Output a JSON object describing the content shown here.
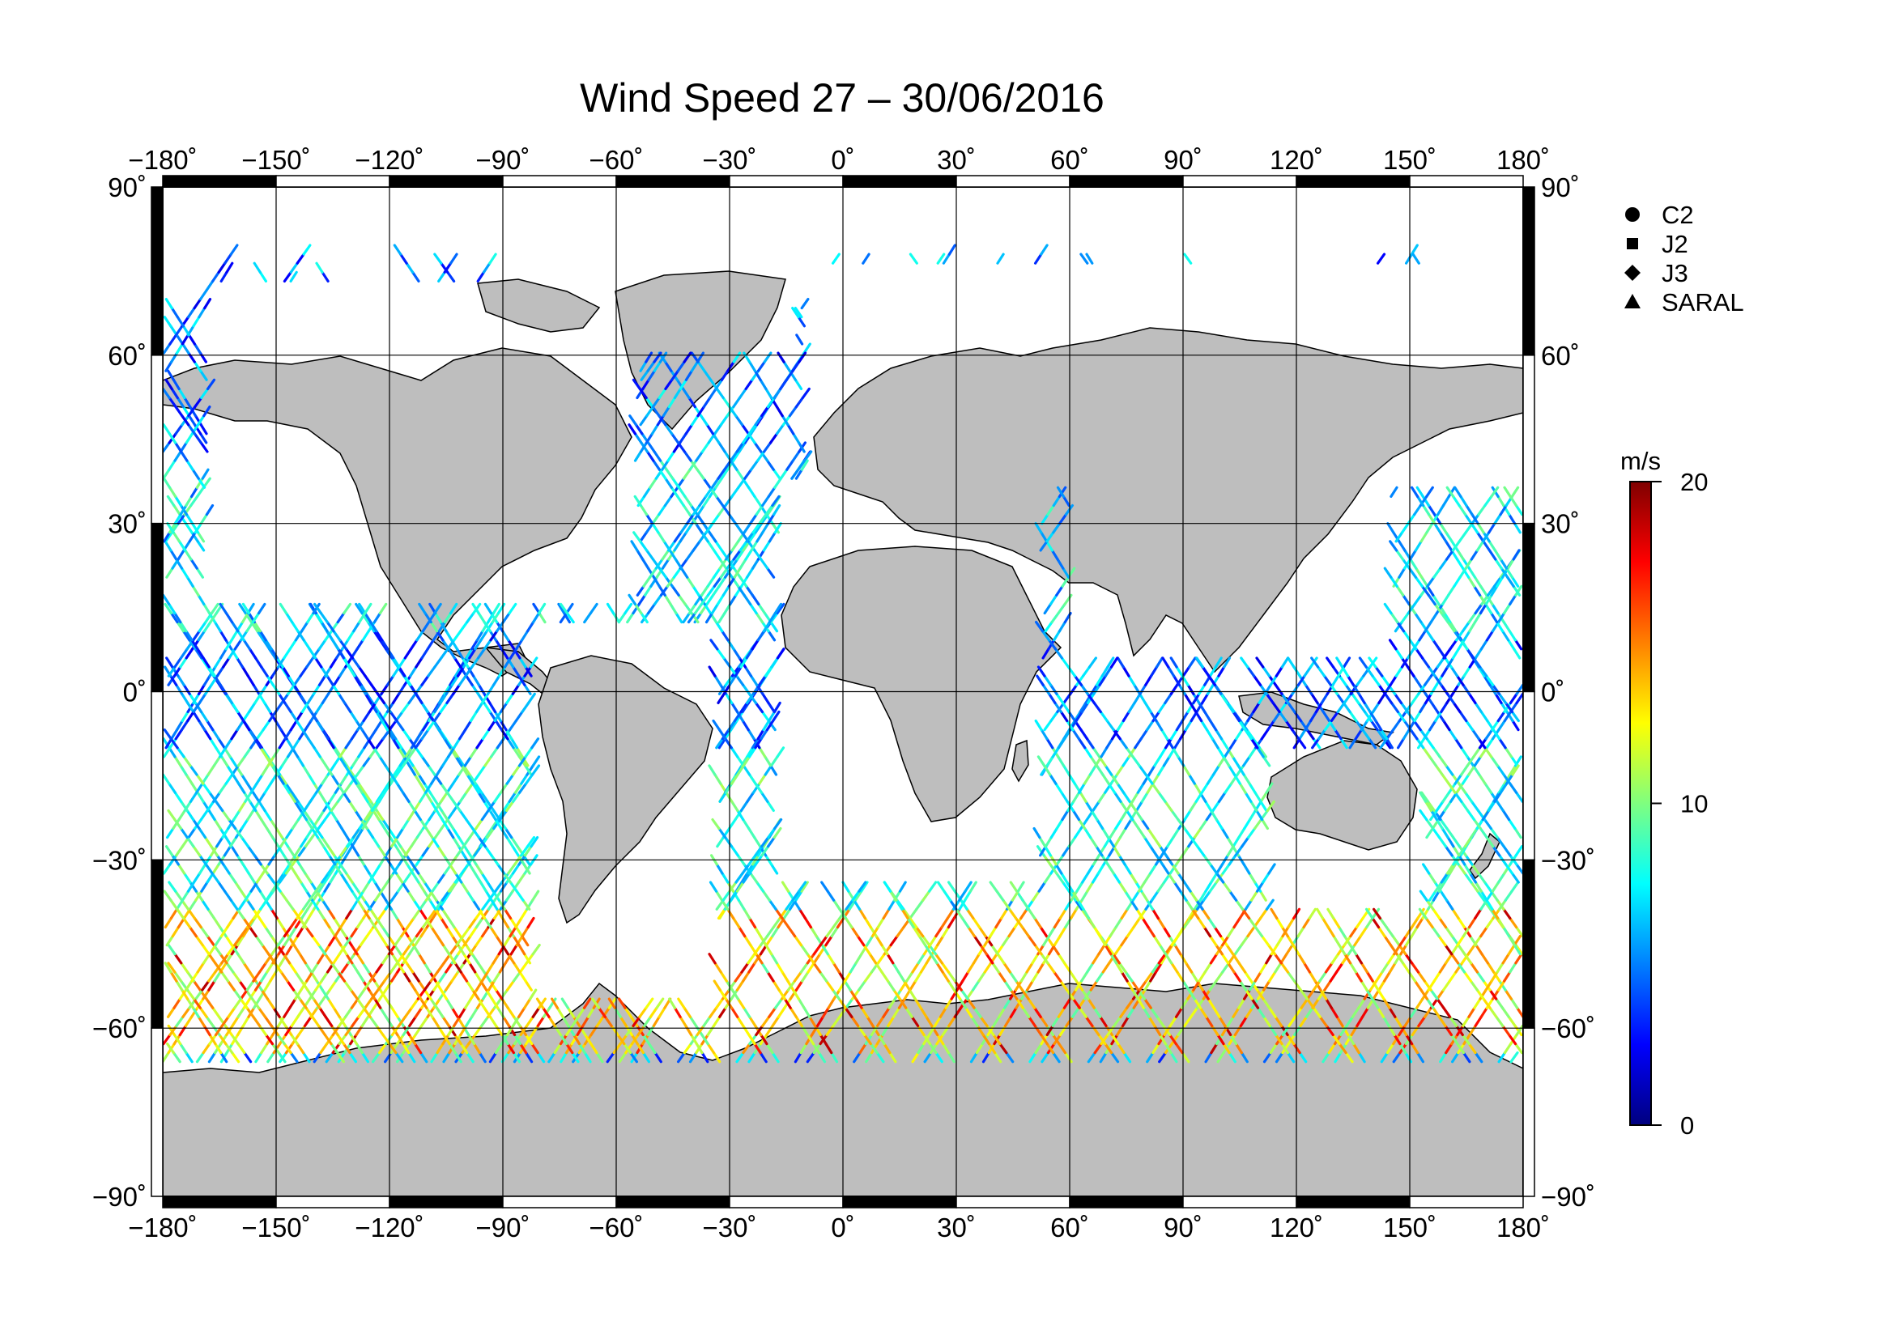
{
  "title": "Wind Speed 27 – 30/06/2016",
  "map": {
    "lon_range": [
      -180,
      180
    ],
    "lat_range": [
      -90,
      90
    ],
    "lon_ticks": [
      {
        "value": -180,
        "label": "−180˚"
      },
      {
        "value": -150,
        "label": "−150˚"
      },
      {
        "value": -120,
        "label": "−120˚"
      },
      {
        "value": -90,
        "label": "−90˚"
      },
      {
        "value": -60,
        "label": "−60˚"
      },
      {
        "value": -30,
        "label": "−30˚"
      },
      {
        "value": 0,
        "label": "0˚"
      },
      {
        "value": 30,
        "label": "30˚"
      },
      {
        "value": 60,
        "label": "60˚"
      },
      {
        "value": 90,
        "label": "90˚"
      },
      {
        "value": 120,
        "label": "120˚"
      },
      {
        "value": 150,
        "label": "150˚"
      },
      {
        "value": 180,
        "label": "180˚"
      }
    ],
    "lat_ticks": [
      {
        "value": 90,
        "label": "90˚"
      },
      {
        "value": 60,
        "label": "60˚"
      },
      {
        "value": 30,
        "label": "30˚"
      },
      {
        "value": 0,
        "label": "0˚"
      },
      {
        "value": -30,
        "label": "−30˚"
      },
      {
        "value": -60,
        "label": "−60˚"
      },
      {
        "value": -90,
        "label": "−90˚"
      }
    ],
    "land_color": "#bebebe",
    "ocean_color": "#ffffff",
    "coast_color": "#000000",
    "grid": true
  },
  "legend": {
    "placement": "right",
    "items": [
      {
        "label": "C2",
        "marker": "circle"
      },
      {
        "label": "J2",
        "marker": "square"
      },
      {
        "label": "J3",
        "marker": "diamond"
      },
      {
        "label": "SARAL",
        "marker": "triangle"
      }
    ]
  },
  "colorbar": {
    "unit": "m/s",
    "min": 0,
    "max": 20,
    "ticks": [
      {
        "value": 20,
        "label": "20"
      },
      {
        "value": 10,
        "label": "10"
      },
      {
        "value": 0,
        "label": "0"
      }
    ],
    "colormap": [
      "#00007f",
      "#0000ff",
      "#007fff",
      "#00ffff",
      "#7fff7f",
      "#ffff00",
      "#ff7f00",
      "#ff0000",
      "#7f0000"
    ]
  },
  "chart_data": {
    "type": "scatter",
    "description_kind": "along-track satellite wind speed (m/s) on a global map",
    "x_axis": "longitude",
    "y_axis": "latitude",
    "xlim": [
      -180,
      180
    ],
    "ylim": [
      -90,
      90
    ],
    "colorbar_range": [
      0,
      20
    ],
    "series": [
      {
        "name": "C2"
      },
      {
        "name": "J2"
      },
      {
        "name": "J3"
      },
      {
        "name": "SARAL"
      }
    ],
    "regional_wind_speed_ms": [
      {
        "lat_band": [
          40,
          80
        ],
        "typical": 5
      },
      {
        "lat_band": [
          10,
          40
        ],
        "typical": 7
      },
      {
        "lat_band": [
          -10,
          10
        ],
        "typical": 5
      },
      {
        "lat_band": [
          -40,
          -10
        ],
        "typical": 8
      },
      {
        "lat_band": [
          -65,
          -40
        ],
        "typical": 12
      }
    ]
  }
}
